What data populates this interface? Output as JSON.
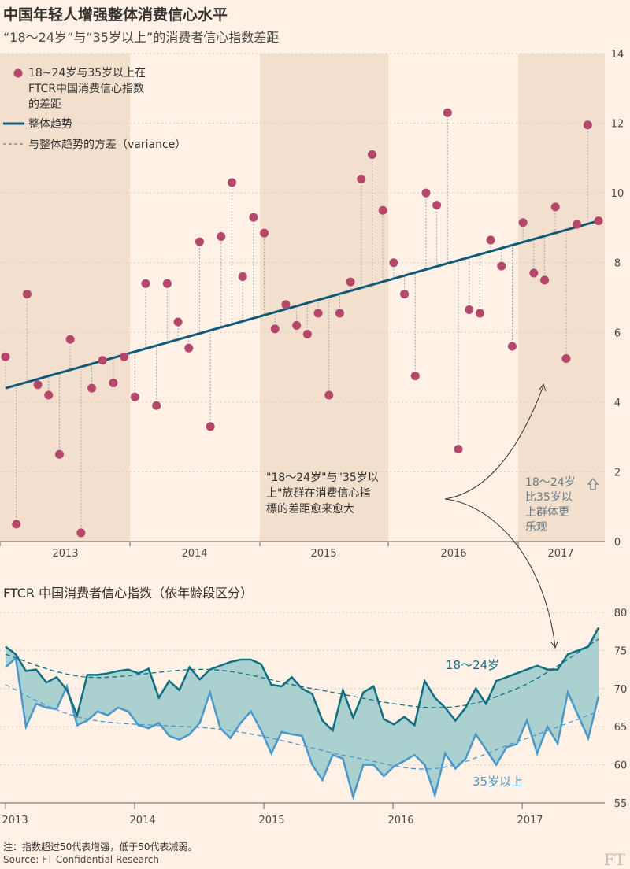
{
  "title": "中国年轻人增强整体消费信心水平",
  "subtitle": "“18～24岁”与“35岁以上”的消费者信心指数差距",
  "colors": {
    "background": "#fff1e5",
    "band": "#f2dfce",
    "dot": "#b5476a",
    "trend": "#0f5a78",
    "young": "#0f6f82",
    "old": "#4a98c9",
    "fill": "#8ec4c8"
  },
  "chart_data": [
    {
      "type": "scatter",
      "legend": [
        "18~24岁与35岁以上在FTCR中国消费信心指数的差距",
        "整体趋势",
        "与整体趋势的方差（variance）"
      ],
      "x_tick_labels": [
        "2013",
        "2014",
        "2015",
        "2016",
        "2017"
      ],
      "y_ticks": [
        0,
        2,
        4,
        6,
        8,
        10,
        12,
        14
      ],
      "ylim": [
        0,
        14
      ],
      "x": [
        "2012-11",
        "2012-12",
        "2013-01",
        "2013-02",
        "2013-03",
        "2013-04",
        "2013-05",
        "2013-06",
        "2013-07",
        "2013-08",
        "2013-09",
        "2013-10",
        "2013-11",
        "2013-12",
        "2014-01",
        "2014-02",
        "2014-03",
        "2014-04",
        "2014-05",
        "2014-06",
        "2014-07",
        "2014-08",
        "2014-09",
        "2014-10",
        "2014-11",
        "2014-12",
        "2015-01",
        "2015-02",
        "2015-03",
        "2015-04",
        "2015-05",
        "2015-06",
        "2015-07",
        "2015-08",
        "2015-09",
        "2015-10",
        "2015-11",
        "2015-12",
        "2016-01",
        "2016-02",
        "2016-03",
        "2016-04",
        "2016-05",
        "2016-06",
        "2016-07",
        "2016-08",
        "2016-09",
        "2016-10",
        "2016-11",
        "2016-12",
        "2017-01",
        "2017-02",
        "2017-03",
        "2017-04",
        "2017-05",
        "2017-06"
      ],
      "values": [
        5.3,
        0.5,
        7.1,
        4.5,
        4.2,
        2.5,
        5.8,
        0.25,
        4.4,
        5.2,
        4.55,
        5.3,
        4.15,
        7.4,
        3.9,
        7.4,
        6.3,
        5.55,
        8.6,
        3.3,
        8.75,
        10.3,
        7.6,
        9.3,
        8.85,
        6.1,
        6.8,
        6.2,
        5.95,
        6.55,
        4.2,
        6.55,
        7.45,
        10.4,
        11.1,
        9.5,
        8.0,
        7.1,
        4.75,
        10.0,
        9.65,
        12.3,
        2.65,
        6.65,
        6.55,
        8.65,
        7.9,
        5.6,
        9.15,
        7.7,
        7.5,
        9.6,
        5.25,
        9.1,
        11.95,
        9.2
      ],
      "trend": {
        "start": 4.4,
        "end": 9.2
      },
      "annotation_gap": "\"18～24岁\"与\"35岁以上\"族群在消费信心指標的差距愈来愈大",
      "annotation_young": "18～24岁 比35岁以上群体更乐观",
      "annotation_arrow_icon": "up-arrow-icon"
    },
    {
      "type": "line",
      "title": "FTCR 中国消费者信心指数（依年龄段区分）",
      "x_tick_labels": [
        "2013",
        "2014",
        "2015",
        "2016",
        "2017"
      ],
      "y_ticks": [
        55,
        60,
        65,
        70,
        75,
        80
      ],
      "ylim": [
        55,
        80
      ],
      "series": [
        {
          "name": "18～24岁",
          "values": [
            75.5,
            74.5,
            72.3,
            72.5,
            70.8,
            71.5,
            69.8,
            66.5,
            71.8,
            71.8,
            72.0,
            72.3,
            72.5,
            72.0,
            72.6,
            68.8,
            71.0,
            69.8,
            72.8,
            71.2,
            72.5,
            73.0,
            73.5,
            73.8,
            73.8,
            73.2,
            70.5,
            70.3,
            71.5,
            70.0,
            69.3,
            65.8,
            64.5,
            69.8,
            66.2,
            69.5,
            70.3,
            66.0,
            65.3,
            66.3,
            65.2,
            71.0,
            68.8,
            67.5,
            65.8,
            67.5,
            70.0,
            68.0,
            71.0,
            71.5,
            72.0,
            72.5,
            73.0,
            72.5,
            72.5,
            74.5,
            75.0,
            75.5,
            78.0
          ]
        },
        {
          "name": "35岁以上",
          "values": [
            72.8,
            74.0,
            65.0,
            68.0,
            67.5,
            67.3,
            70.3,
            65.2,
            65.8,
            67.0,
            66.5,
            67.5,
            67.0,
            65.2,
            64.8,
            65.5,
            63.8,
            63.3,
            64.0,
            65.5,
            69.5,
            64.8,
            63.5,
            65.5,
            67.0,
            64.5,
            61.5,
            64.3,
            64.0,
            63.8,
            60.0,
            58.0,
            61.3,
            60.8,
            55.8,
            60.0,
            60.0,
            58.5,
            59.8,
            60.5,
            61.3,
            60.0,
            56.0,
            61.5,
            59.5,
            60.8,
            64.0,
            62.0,
            60.0,
            62.3,
            62.7,
            65.8,
            61.5,
            65.0,
            62.8,
            69.5,
            66.5,
            63.5,
            69.0
          ]
        }
      ],
      "trend_series": [
        {
          "name": "18～24岁 趋势",
          "points": [
            [
              0,
              74.5
            ],
            [
              8,
              71.5
            ],
            [
              20,
              72.5
            ],
            [
              30,
              70.0
            ],
            [
              42,
              67.5
            ],
            [
              50,
              70.0
            ],
            [
              58,
              76.5
            ]
          ]
        },
        {
          "name": "35岁以上 趋势",
          "points": [
            [
              0,
              70.5
            ],
            [
              8,
              66.0
            ],
            [
              22,
              64.5
            ],
            [
              34,
              61.0
            ],
            [
              42,
              59.5
            ],
            [
              50,
              63.0
            ],
            [
              58,
              67.0
            ]
          ]
        }
      ],
      "label_young": "18～24岁",
      "label_old": "35岁以上"
    }
  ],
  "note": "注：指数超过50代表增强，低于50代表减弱。",
  "source": "Source: FT Confidential Research",
  "ft_logo": "FT"
}
